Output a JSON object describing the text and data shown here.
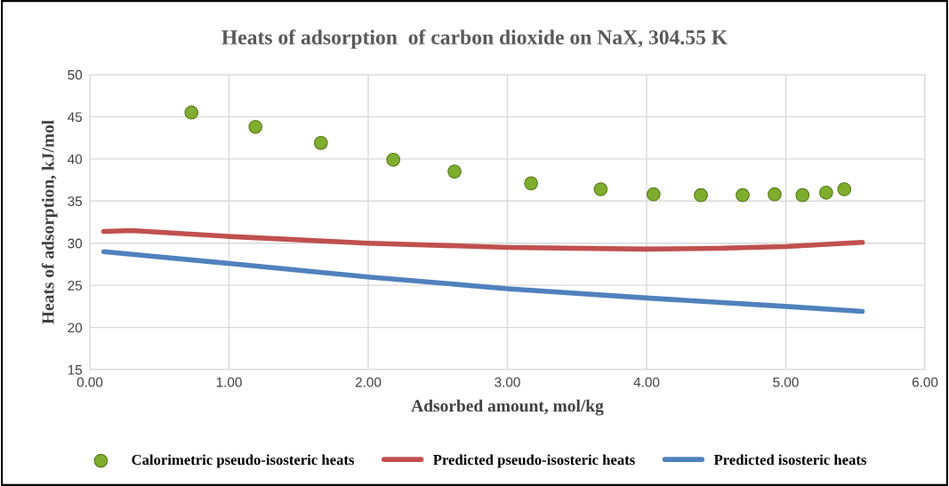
{
  "chart_data": {
    "type": "line",
    "title": "Heats of adsorption  of carbon dioxide on NaX, 304.55 K",
    "xlabel": "Adsorbed amount, mol/kg",
    "ylabel": "Heats of adsorption, kJ/mol",
    "xlim": [
      0,
      6
    ],
    "xticks": [
      {
        "value": 0,
        "label": "0.00"
      },
      {
        "value": 1,
        "label": "1.00"
      },
      {
        "value": 2,
        "label": "2.00"
      },
      {
        "value": 3,
        "label": "3.00"
      },
      {
        "value": 4,
        "label": "4.00"
      },
      {
        "value": 5,
        "label": "5.00"
      },
      {
        "value": 6,
        "label": "6.00"
      }
    ],
    "ylim": [
      15,
      50
    ],
    "yticks": [
      15,
      20,
      25,
      30,
      35,
      40,
      45,
      50
    ],
    "grid": true,
    "legend": "bottom",
    "series": [
      {
        "name": "Calorimetric pseudo-isosteric heats",
        "type": "scatter",
        "marker": "circle",
        "color": "#7fad2e",
        "x": [
          0.73,
          1.19,
          1.66,
          2.18,
          2.62,
          3.17,
          3.67,
          4.05,
          4.39,
          4.69,
          4.92,
          5.12,
          5.29,
          5.42
        ],
        "values": [
          45.5,
          43.8,
          41.9,
          39.9,
          38.5,
          37.1,
          36.4,
          35.8,
          35.7,
          35.7,
          35.8,
          35.7,
          36.0,
          36.4
        ]
      },
      {
        "name": "Predicted pseudo-isosteric heats",
        "color": "#c0504d",
        "x": [
          0.1,
          0.3,
          1.0,
          2.0,
          3.0,
          4.0,
          4.5,
          5.0,
          5.55
        ],
        "values": [
          31.4,
          31.5,
          30.8,
          30.0,
          29.5,
          29.3,
          29.4,
          29.6,
          30.1
        ]
      },
      {
        "name": "Predicted isosteric heats",
        "color": "#4f81bd",
        "x": [
          0.1,
          1.0,
          2.0,
          3.0,
          4.0,
          5.0,
          5.55
        ],
        "values": [
          29.0,
          27.6,
          26.0,
          24.6,
          23.5,
          22.5,
          21.9
        ]
      }
    ]
  }
}
